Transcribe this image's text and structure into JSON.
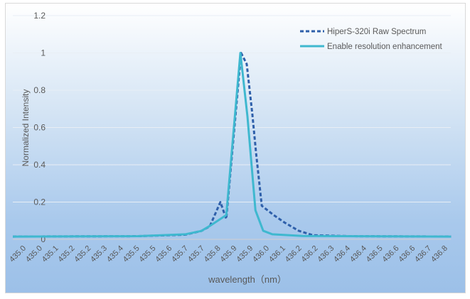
{
  "chart_data": {
    "type": "line",
    "title": "",
    "xlabel": "wavelength（nm）",
    "ylabel": "Normalized Intensity",
    "ylim": [
      0,
      1.2
    ],
    "xlim": [
      434.967,
      436.83
    ],
    "yticks": [
      "0",
      "0.2",
      "0.4",
      "0.6",
      "0.8",
      "1",
      "1.2"
    ],
    "ytick_values": [
      0,
      0.2,
      0.4,
      0.6,
      0.8,
      1,
      1.2
    ],
    "xtick_labels": [
      "435.0",
      "435.0",
      "435.1",
      "435.2",
      "435.2",
      "435.3",
      "435.4",
      "435.5",
      "435.5",
      "435.6",
      "435.7",
      "435.7",
      "435.8",
      "435.9",
      "435.9",
      "436.0",
      "436.1",
      "436.2",
      "436.2",
      "436.3",
      "436.4",
      "436.4",
      "436.5",
      "436.6",
      "436.6",
      "436.7",
      "436.8"
    ],
    "grid": true,
    "legend_position": "top-right",
    "series": [
      {
        "name": "HiperS-320i Raw Spectrum",
        "style": "dashed",
        "color": "#2e5faa",
        "x": [
          434.967,
          435.5,
          435.7,
          435.769,
          435.805,
          435.85,
          435.875,
          435.938,
          435.962,
          435.986,
          436.002,
          436.026,
          436.077,
          436.123,
          436.183,
          436.244,
          436.4,
          436.831
        ],
        "y": [
          0.015,
          0.017,
          0.025,
          0.045,
          0.07,
          0.2,
          0.11,
          1.0,
          0.94,
          0.67,
          0.46,
          0.18,
          0.13,
          0.09,
          0.046,
          0.022,
          0.017,
          0.015
        ]
      },
      {
        "name": "Enable resolution enhancement",
        "style": "solid",
        "color": "#3fb8cf",
        "x": [
          434.967,
          435.5,
          435.7,
          435.769,
          435.805,
          435.875,
          435.935,
          435.965,
          435.999,
          436.032,
          436.071,
          436.2,
          436.831
        ],
        "y": [
          0.015,
          0.017,
          0.027,
          0.045,
          0.072,
          0.13,
          1.0,
          0.66,
          0.156,
          0.046,
          0.027,
          0.018,
          0.015
        ]
      }
    ]
  }
}
